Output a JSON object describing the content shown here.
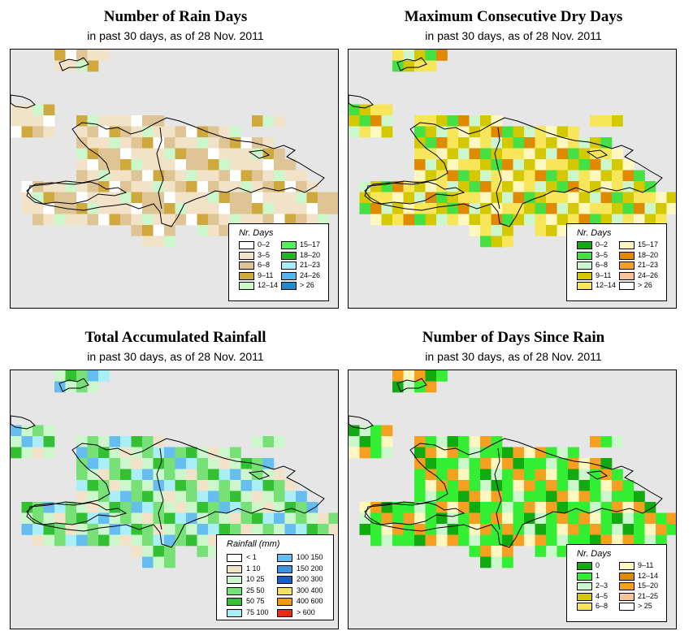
{
  "common": {
    "subtitle": "in past 30 days, as of  28 Nov. 2011"
  },
  "panels": [
    {
      "id": "rain-days",
      "title": "Number of Rain Days",
      "legend": {
        "title": "Nr. Days",
        "columns": 2,
        "items": [
          {
            "label": "0–2",
            "color": "#ffffff"
          },
          {
            "label": "3–5",
            "color": "#f2e3c8"
          },
          {
            "label": "6–8",
            "color": "#dfc595"
          },
          {
            "label": "9–11",
            "color": "#cfa83e"
          },
          {
            "label": "12–14",
            "color": "#ccf7cc"
          },
          {
            "label": "15–17",
            "color": "#55f055"
          },
          {
            "label": "18–20",
            "color": "#22b422"
          },
          {
            "label": "21–23",
            "color": "#a8eef7"
          },
          {
            "label": "24–26",
            "color": "#55b4f0"
          },
          {
            "label": "> 26",
            "color": "#1f8cd0"
          }
        ]
      }
    },
    {
      "id": "max-dry",
      "title": "Maximum Consecutive Dry Days",
      "legend": {
        "title": "Nr. Days",
        "columns": 2,
        "items": [
          {
            "label": "0–2",
            "color": "#11aa11"
          },
          {
            "label": "3–5",
            "color": "#44e044"
          },
          {
            "label": "6–8",
            "color": "#ccf7cc"
          },
          {
            "label": "9–11",
            "color": "#d4c800"
          },
          {
            "label": "12–14",
            "color": "#f7e65a"
          },
          {
            "label": "15–17",
            "color": "#fff7c0"
          },
          {
            "label": "18–20",
            "color": "#e08a00"
          },
          {
            "label": "21–23",
            "color": "#f5a020"
          },
          {
            "label": "24–26",
            "color": "#f7c49a"
          },
          {
            "label": "> 26",
            "color": "#ffffff"
          }
        ]
      }
    },
    {
      "id": "rainfall",
      "title": "Total Accumulated Rainfall",
      "legend": {
        "title": "Rainfall (mm)",
        "columns": 2,
        "items": [
          {
            "label": "< 1",
            "color": "#ffffff"
          },
          {
            "label": "1    10",
            "color": "#f2e3c8"
          },
          {
            "label": "10    25",
            "color": "#ccf7cc"
          },
          {
            "label": "25    50",
            "color": "#77e077"
          },
          {
            "label": "50    75",
            "color": "#33c033"
          },
          {
            "label": "75   100",
            "color": "#aaeef7"
          },
          {
            "label": "100   150",
            "color": "#66bdf0"
          },
          {
            "label": "150   200",
            "color": "#3a95e0"
          },
          {
            "label": "200   300",
            "color": "#1a5ec8"
          },
          {
            "label": "300   400",
            "color": "#f7e060"
          },
          {
            "label": "400   600",
            "color": "#f09a10"
          },
          {
            "label": "> 600",
            "color": "#f02a10"
          }
        ]
      }
    },
    {
      "id": "since-rain",
      "title": "Number of Days Since Rain",
      "legend": {
        "title": "Nr. Days",
        "columns": 2,
        "items": [
          {
            "label": "0",
            "color": "#11aa11"
          },
          {
            "label": "1",
            "color": "#33ee33"
          },
          {
            "label": "2–3",
            "color": "#ccf7cc"
          },
          {
            "label": "4–5",
            "color": "#d4c800"
          },
          {
            "label": "6–8",
            "color": "#f7e65a"
          },
          {
            "label": "9–11",
            "color": "#fff7c0"
          },
          {
            "label": "12–14",
            "color": "#e08a00"
          },
          {
            "label": "15–20",
            "color": "#f5a020"
          },
          {
            "label": "21–25",
            "color": "#f7c49a"
          },
          {
            "label": "> 25",
            "color": "#ffffff"
          }
        ]
      }
    }
  ]
}
